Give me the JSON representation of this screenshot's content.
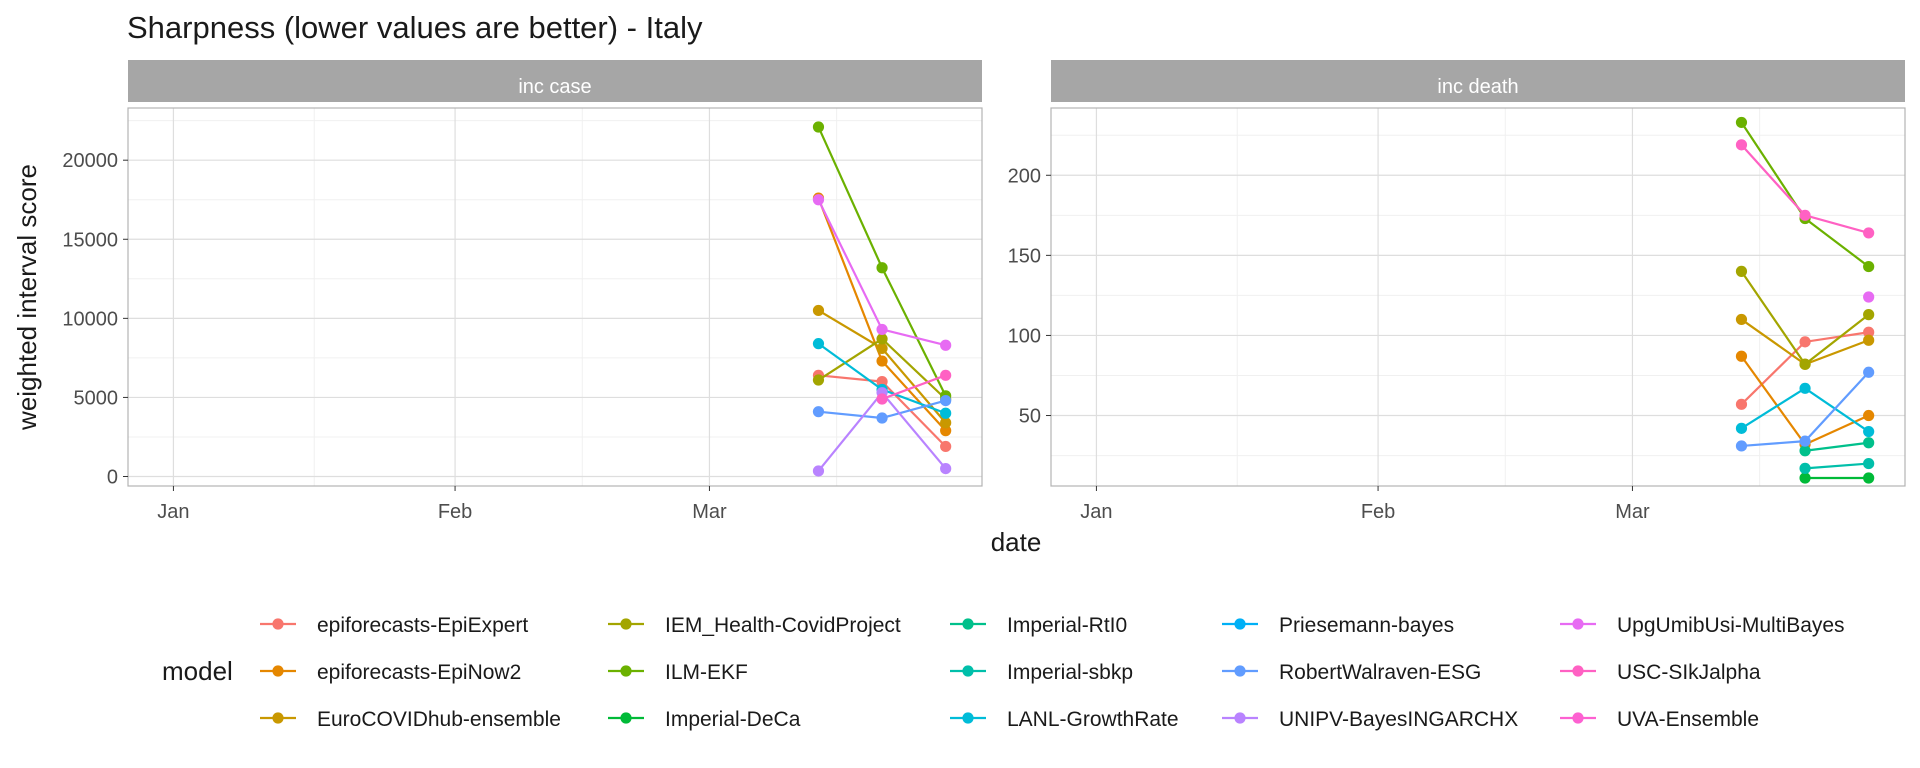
{
  "chart_data": {
    "type": "line",
    "title": "Sharpness (lower values are better) - Italy",
    "xlabel": "date",
    "ylabel": "weighted interval score",
    "x_ticks": [
      "Jan",
      "Feb",
      "Mar"
    ],
    "dates": [
      "2021-03-13",
      "2021-03-20",
      "2021-03-27"
    ],
    "grid": true,
    "legend": {
      "title": "model",
      "placement": "bottom"
    },
    "models": [
      {
        "name": "epiforecasts-EpiExpert",
        "color": "#F8766D"
      },
      {
        "name": "epiforecasts-EpiNow2",
        "color": "#E58700"
      },
      {
        "name": "EuroCOVIDhub-ensemble",
        "color": "#C99800"
      },
      {
        "name": "IEM_Health-CovidProject",
        "color": "#A3A500"
      },
      {
        "name": "ILM-EKF",
        "color": "#6BB100"
      },
      {
        "name": "Imperial-DeCa",
        "color": "#00BA38"
      },
      {
        "name": "Imperial-RtI0",
        "color": "#00C08B"
      },
      {
        "name": "Imperial-sbkp",
        "color": "#00BFAA"
      },
      {
        "name": "LANL-GrowthRate",
        "color": "#00BCD8"
      },
      {
        "name": "Priesemann-bayes",
        "color": "#00B0F6"
      },
      {
        "name": "RobertWalraven-ESG",
        "color": "#619CFF"
      },
      {
        "name": "UNIPV-BayesINGARCHX",
        "color": "#B983FF"
      },
      {
        "name": "UpgUmibUsi-MultiBayes",
        "color": "#E76BF3"
      },
      {
        "name": "USC-SIkJalpha",
        "color": "#FF61C3"
      },
      {
        "name": "UVA-Ensemble",
        "color": "#FD61D1"
      }
    ],
    "panels": [
      {
        "strip": "inc case",
        "ylim": [
          -600,
          23300
        ],
        "y_ticks": [
          0,
          5000,
          10000,
          15000,
          20000
        ],
        "y_tick_labels": [
          "0",
          "5000",
          "10000",
          "15000",
          "20000"
        ],
        "series": [
          {
            "name": "epiforecasts-EpiExpert",
            "values": [
              6400,
              6000,
              1900
            ]
          },
          {
            "name": "epiforecasts-EpiNow2",
            "values": [
              17600,
              7300,
              2900
            ]
          },
          {
            "name": "EuroCOVIDhub-ensemble",
            "values": [
              10500,
              8100,
              3400
            ]
          },
          {
            "name": "IEM_Health-CovidProject",
            "values": [
              6100,
              8700,
              4900
            ]
          },
          {
            "name": "ILM-EKF",
            "values": [
              22100,
              13200,
              5100
            ]
          },
          {
            "name": "LANL-GrowthRate",
            "values": [
              8400,
              5500,
              4000
            ]
          },
          {
            "name": "RobertWalraven-ESG",
            "values": [
              4100,
              3700,
              4800
            ]
          },
          {
            "name": "UNIPV-BayesINGARCHX",
            "values": [
              350,
              5300,
              500
            ]
          },
          {
            "name": "UpgUmibUsi-MultiBayes",
            "values": [
              17500,
              9300,
              8300
            ]
          },
          {
            "name": "USC-SIkJalpha",
            "values": [
              null,
              4900,
              6400
            ]
          }
        ]
      },
      {
        "strip": "inc death",
        "ylim": [
          6,
          242
        ],
        "y_ticks": [
          50,
          100,
          150,
          200
        ],
        "y_tick_labels": [
          "50",
          "100",
          "150",
          "200"
        ],
        "series": [
          {
            "name": "epiforecasts-EpiExpert",
            "values": [
              57,
              96,
              102
            ]
          },
          {
            "name": "epiforecasts-EpiNow2",
            "values": [
              87,
              32,
              50
            ]
          },
          {
            "name": "EuroCOVIDhub-ensemble",
            "values": [
              110,
              82,
              97
            ]
          },
          {
            "name": "IEM_Health-CovidProject",
            "values": [
              140,
              82,
              113
            ]
          },
          {
            "name": "ILM-EKF",
            "values": [
              233,
              173,
              143
            ]
          },
          {
            "name": "Imperial-DeCa",
            "values": [
              null,
              11,
              11
            ]
          },
          {
            "name": "Imperial-RtI0",
            "values": [
              null,
              28,
              33
            ]
          },
          {
            "name": "Imperial-sbkp",
            "values": [
              null,
              17,
              20
            ]
          },
          {
            "name": "LANL-GrowthRate",
            "values": [
              42,
              67,
              40
            ]
          },
          {
            "name": "RobertWalraven-ESG",
            "values": [
              31,
              34,
              77
            ]
          },
          {
            "name": "UpgUmibUsi-MultiBayes",
            "values": [
              null,
              null,
              124
            ]
          },
          {
            "name": "USC-SIkJalpha",
            "values": [
              219,
              175,
              164
            ]
          }
        ]
      }
    ]
  }
}
